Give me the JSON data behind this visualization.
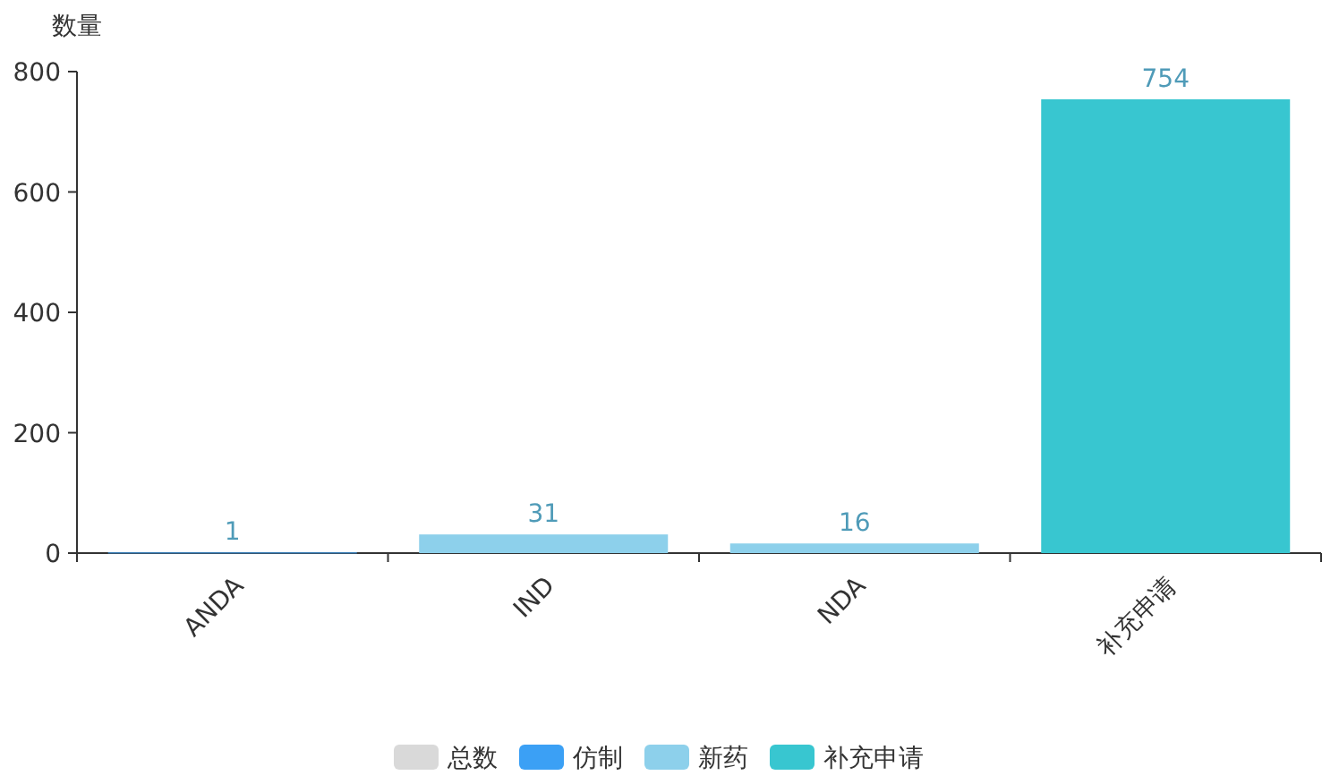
{
  "chart_data": {
    "type": "bar",
    "ylabel": "数量",
    "categories": [
      "ANDA",
      "IND",
      "NDA",
      "补充申请"
    ],
    "series": [
      {
        "name": "总数",
        "color": "#d9d9d9",
        "values": [
          null,
          null,
          null,
          null
        ]
      },
      {
        "name": "仿制",
        "color": "#3ba0f5",
        "values": [
          1,
          null,
          null,
          null
        ]
      },
      {
        "name": "新药",
        "color": "#8dd0eb",
        "values": [
          null,
          31,
          16,
          null
        ]
      },
      {
        "name": "补充申请",
        "color": "#38c6d0",
        "values": [
          null,
          null,
          null,
          754
        ]
      }
    ],
    "stacked": true,
    "ylim": [
      0,
      800
    ],
    "yticks": [
      0,
      200,
      400,
      600,
      800
    ],
    "data_labels": true,
    "legend": "bottom"
  }
}
